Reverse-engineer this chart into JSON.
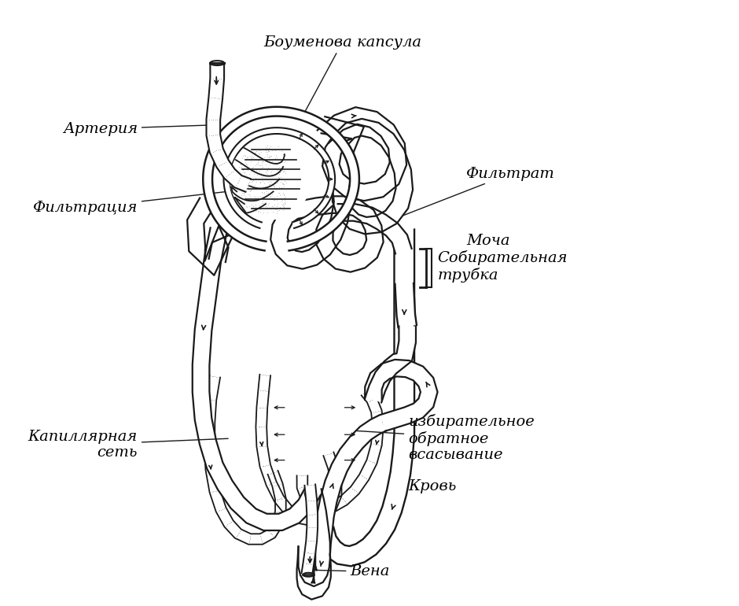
{
  "labels": {
    "bowman": "Боуменова капсула",
    "artery": "Артерия",
    "filtration": "Фильтрация",
    "filtrate": "Фильтрат",
    "urine": "Моча",
    "collecting": "Собирательная\nтрубка",
    "capillary": "Капиллярная\nсеть",
    "selective": "избирательное\nобратное\nвсасывание",
    "blood": "Кровь",
    "vein": "Вена"
  },
  "figsize": [
    9.4,
    7.7
  ],
  "dpi": 100,
  "lc": "#1a1a1a",
  "stipple_color": "#aaaaaa"
}
